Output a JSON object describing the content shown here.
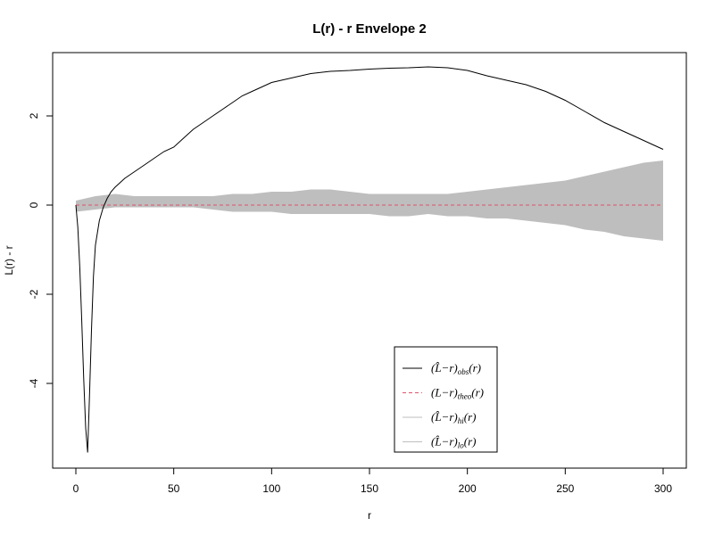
{
  "chart_data": {
    "type": "line",
    "title": "L(r) - r Envelope 2",
    "xlabel": "r",
    "ylabel": "L(r) - r",
    "xlim": [
      0,
      300
    ],
    "ylim": [
      -5.6,
      3.4
    ],
    "xticks": [
      0,
      50,
      100,
      150,
      200,
      250,
      300
    ],
    "yticks": [
      -4,
      -2,
      0,
      2
    ],
    "grid": false,
    "legend_position": "bottom-center",
    "colors": {
      "obs": "#000000",
      "theo": "#df536b",
      "envelope": "#bebebe"
    },
    "legend": [
      {
        "base": "(L̂−r)",
        "sub": "obs",
        "suffix": "(r)"
      },
      {
        "base": "(L−r)",
        "sub": "theo",
        "suffix": "(r)"
      },
      {
        "base": "(L̂−r)",
        "sub": "hi",
        "suffix": "(r)"
      },
      {
        "base": "(L̂−r)",
        "sub": "lo",
        "suffix": "(r)"
      }
    ],
    "series": [
      {
        "key": "obs",
        "x": [
          0,
          1,
          2,
          3,
          4,
          5,
          6,
          7,
          8,
          9,
          10,
          12,
          14,
          16,
          18,
          20,
          25,
          30,
          35,
          40,
          45,
          50,
          55,
          60,
          65,
          70,
          75,
          80,
          85,
          90,
          95,
          100,
          105,
          110,
          115,
          120,
          130,
          140,
          150,
          160,
          170,
          180,
          190,
          200,
          210,
          220,
          230,
          240,
          250,
          260,
          270,
          280,
          290,
          295,
          300
        ],
        "y": [
          0,
          -0.5,
          -1.4,
          -2.6,
          -3.9,
          -5.0,
          -5.55,
          -4.2,
          -2.8,
          -1.6,
          -0.9,
          -0.35,
          -0.05,
          0.15,
          0.3,
          0.4,
          0.6,
          0.75,
          0.9,
          1.05,
          1.2,
          1.3,
          1.5,
          1.7,
          1.85,
          2.0,
          2.15,
          2.3,
          2.45,
          2.55,
          2.65,
          2.75,
          2.8,
          2.85,
          2.9,
          2.95,
          3.0,
          3.02,
          3.05,
          3.07,
          3.08,
          3.1,
          3.08,
          3.02,
          2.9,
          2.8,
          2.7,
          2.55,
          2.35,
          2.1,
          1.85,
          1.65,
          1.45,
          1.35,
          1.25
        ]
      },
      {
        "key": "theo",
        "x": [
          0,
          300
        ],
        "y": [
          0,
          0
        ]
      },
      {
        "key": "hi",
        "x": [
          0,
          10,
          20,
          30,
          40,
          50,
          60,
          70,
          80,
          90,
          100,
          110,
          120,
          130,
          140,
          150,
          160,
          170,
          180,
          190,
          200,
          210,
          220,
          230,
          240,
          250,
          260,
          270,
          280,
          290,
          300
        ],
        "y": [
          0.1,
          0.2,
          0.25,
          0.2,
          0.2,
          0.2,
          0.2,
          0.2,
          0.25,
          0.25,
          0.3,
          0.3,
          0.35,
          0.35,
          0.3,
          0.25,
          0.25,
          0.25,
          0.25,
          0.25,
          0.3,
          0.35,
          0.4,
          0.45,
          0.5,
          0.55,
          0.65,
          0.75,
          0.85,
          0.95,
          1.0
        ]
      },
      {
        "key": "lo",
        "x": [
          0,
          10,
          20,
          30,
          40,
          50,
          60,
          70,
          80,
          90,
          100,
          110,
          120,
          130,
          140,
          150,
          160,
          170,
          180,
          190,
          200,
          210,
          220,
          230,
          240,
          250,
          260,
          270,
          280,
          290,
          300
        ],
        "y": [
          -0.15,
          -0.1,
          -0.05,
          -0.05,
          -0.05,
          -0.05,
          -0.05,
          -0.1,
          -0.15,
          -0.15,
          -0.15,
          -0.2,
          -0.2,
          -0.2,
          -0.2,
          -0.2,
          -0.25,
          -0.25,
          -0.2,
          -0.25,
          -0.25,
          -0.3,
          -0.3,
          -0.35,
          -0.4,
          -0.45,
          -0.55,
          -0.6,
          -0.7,
          -0.75,
          -0.8
        ]
      }
    ]
  }
}
